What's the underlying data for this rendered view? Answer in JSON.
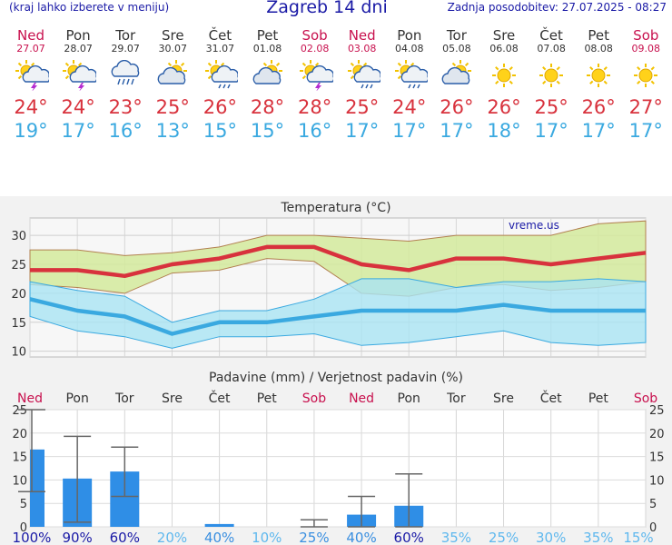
{
  "header": {
    "left_note": "(kraj lahko izberete v meniju)",
    "title": "Zagreb 14 dni",
    "updated": "Zadnja posodobitev: 27.07.2025 - 08:27"
  },
  "days": [
    {
      "name": "Ned",
      "date": "27.07",
      "weekend": true,
      "icon": "sun-cloud-thunder-icon",
      "max": "24°",
      "min": "19°"
    },
    {
      "name": "Pon",
      "date": "28.07",
      "weekend": false,
      "icon": "sun-cloud-thunder-icon",
      "max": "24°",
      "min": "17°"
    },
    {
      "name": "Tor",
      "date": "29.07",
      "weekend": false,
      "icon": "cloud-rain-icon",
      "max": "23°",
      "min": "16°"
    },
    {
      "name": "Sre",
      "date": "30.07",
      "weekend": false,
      "icon": "sun-cloud-icon",
      "max": "25°",
      "min": "13°"
    },
    {
      "name": "Čet",
      "date": "31.07",
      "weekend": false,
      "icon": "sun-cloud-rain-icon",
      "max": "26°",
      "min": "15°"
    },
    {
      "name": "Pet",
      "date": "01.08",
      "weekend": false,
      "icon": "sun-cloud-icon",
      "max": "28°",
      "min": "15°"
    },
    {
      "name": "Sob",
      "date": "02.08",
      "weekend": true,
      "icon": "sun-cloud-thunder-icon",
      "max": "28°",
      "min": "16°"
    },
    {
      "name": "Ned",
      "date": "03.08",
      "weekend": true,
      "icon": "sun-cloud-rain-icon",
      "max": "25°",
      "min": "17°"
    },
    {
      "name": "Pon",
      "date": "04.08",
      "weekend": false,
      "icon": "sun-cloud-rain-icon",
      "max": "24°",
      "min": "17°"
    },
    {
      "name": "Tor",
      "date": "05.08",
      "weekend": false,
      "icon": "sun-cloud-icon",
      "max": "26°",
      "min": "17°"
    },
    {
      "name": "Sre",
      "date": "06.08",
      "weekend": false,
      "icon": "sun-icon",
      "max": "26°",
      "min": "18°"
    },
    {
      "name": "Čet",
      "date": "07.08",
      "weekend": false,
      "icon": "sun-icon",
      "max": "25°",
      "min": "17°"
    },
    {
      "name": "Pet",
      "date": "08.08",
      "weekend": false,
      "icon": "sun-icon",
      "max": "26°",
      "min": "17°"
    },
    {
      "name": "Sob",
      "date": "09.08",
      "weekend": true,
      "icon": "sun-icon",
      "max": "27°",
      "min": "17°"
    }
  ],
  "chart_data": [
    {
      "type": "line",
      "title": "Temperatura (°C)",
      "watermark": "vreme.us",
      "ylim": [
        9,
        33
      ],
      "yticks": [
        10,
        15,
        20,
        25,
        30
      ],
      "grid": true,
      "series": [
        {
          "role": "max",
          "color": "#d8323d",
          "values": [
            24,
            24,
            23,
            25,
            26,
            28,
            28,
            25,
            24,
            26,
            26,
            25,
            26,
            27
          ]
        },
        {
          "role": "min",
          "color": "#3aa9e0",
          "values": [
            19,
            17,
            16,
            13,
            15,
            15,
            16,
            17,
            17,
            17,
            18,
            17,
            17,
            17
          ]
        }
      ],
      "bands": [
        {
          "role": "max-range",
          "color": "#d4ea9c",
          "upper": [
            27.5,
            27.5,
            26.5,
            27,
            28,
            30,
            30,
            29.5,
            29,
            30,
            30,
            30,
            32,
            32.5
          ],
          "lower": [
            21.5,
            21,
            20,
            23.5,
            24,
            26,
            25.5,
            20,
            19.5,
            21,
            21.5,
            20.5,
            21,
            22
          ]
        },
        {
          "role": "min-range",
          "color": "#a9e3f2",
          "upper": [
            22,
            20.5,
            19.5,
            15,
            17,
            17,
            19,
            22.5,
            22.5,
            21,
            22,
            22,
            22.5,
            22
          ],
          "lower": [
            16,
            13.5,
            12.5,
            10.5,
            12.5,
            12.5,
            13,
            11,
            11.5,
            12.5,
            13.5,
            11.5,
            11,
            11.5
          ]
        }
      ]
    },
    {
      "type": "bar",
      "title": "Padavine (mm) / Verjetnost padavin (%)",
      "categories": [
        "Ned",
        "Pon",
        "Tor",
        "Sre",
        "Čet",
        "Pet",
        "Sob",
        "Ned",
        "Pon",
        "Tor",
        "Sre",
        "Čet",
        "Pet",
        "Sob"
      ],
      "weekend": [
        true,
        false,
        false,
        false,
        false,
        false,
        true,
        true,
        false,
        false,
        false,
        false,
        false,
        true
      ],
      "ylim": [
        0,
        25
      ],
      "yticks": [
        0,
        5,
        10,
        15,
        20,
        25
      ],
      "values": [
        16.5,
        10.3,
        11.8,
        0,
        0.6,
        0,
        0,
        2.6,
        4.5,
        0,
        0,
        0,
        0,
        0
      ],
      "error_low": [
        7.5,
        1,
        6.5,
        0,
        0,
        0,
        0,
        0,
        0,
        0,
        0,
        0,
        0,
        0
      ],
      "error_high": [
        25,
        19.3,
        17,
        0,
        0,
        0,
        1.5,
        6.5,
        11.3,
        0,
        0,
        0,
        0,
        0
      ],
      "probability": [
        "100%",
        "90%",
        "60%",
        "20%",
        "40%",
        "10%",
        "25%",
        "40%",
        "60%",
        "35%",
        "25%",
        "30%",
        "35%",
        "15%"
      ],
      "probability_colors": [
        "#1a1aa6",
        "#1a1aa6",
        "#1a1aa6",
        "#5fb8ee",
        "#3a8fe0",
        "#5fb8ee",
        "#3a8fe0",
        "#3a8fe0",
        "#1a1aa6",
        "#5fb8ee",
        "#5fb8ee",
        "#5fb8ee",
        "#5fb8ee",
        "#5fb8ee"
      ],
      "bar_color": "#2f8ee6"
    }
  ]
}
